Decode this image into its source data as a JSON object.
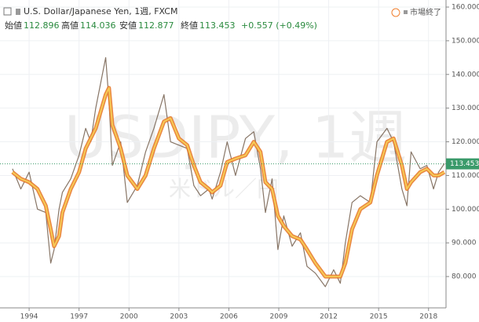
{
  "header": {
    "symbol": "U.S. Dollar/Japanese Yen, 1週, FXCM",
    "open_label": "始値",
    "open": 112.896,
    "high_label": "高値",
    "high": 114.036,
    "low_label": "安値",
    "low": 112.877,
    "close_label": "終値",
    "change": "+0.557 (+0.49%)",
    "status": "市場終了"
  },
  "watermark": {
    "main": "USDJPY, 1週",
    "sub": "米ドル／円"
  },
  "chart_data": {
    "type": "line",
    "last_price": 113.453,
    "x": [
      1993.0,
      1993.5,
      1994.0,
      1994.5,
      1995.0,
      1995.3,
      1995.5,
      1995.8,
      1996.0,
      1996.5,
      1997.0,
      1997.4,
      1997.7,
      1998.0,
      1998.6,
      1998.8,
      1999.0,
      1999.5,
      1999.9,
      2000.5,
      2001.0,
      2001.5,
      2002.1,
      2002.5,
      2003.0,
      2003.5,
      2003.9,
      2004.3,
      2004.8,
      2005.0,
      2005.5,
      2005.9,
      2006.4,
      2007.0,
      2007.5,
      2007.9,
      2008.2,
      2008.6,
      2008.95,
      2009.3,
      2009.8,
      2010.3,
      2010.7,
      2011.2,
      2011.8,
      2012.3,
      2012.7,
      2013.0,
      2013.4,
      2013.9,
      2014.5,
      2014.9,
      2015.5,
      2015.9,
      2016.4,
      2016.7,
      2016.95,
      2017.5,
      2017.9,
      2018.3,
      2018.6,
      2018.95
    ],
    "series": [
      {
        "color": "#7a6655",
        "width": 1.2,
        "values": [
          112,
          106,
          111,
          100,
          99,
          84,
          88,
          100,
          105,
          109,
          116,
          124,
          120,
          130,
          145,
          132,
          113,
          120,
          102,
          107,
          117,
          124,
          134,
          120,
          119,
          118,
          107,
          104,
          106,
          103,
          111,
          120,
          110,
          121,
          123,
          112,
          99,
          109,
          88,
          98,
          89,
          93,
          83,
          81,
          77,
          82,
          78,
          90,
          102,
          104,
          102,
          120,
          124,
          120,
          106,
          101,
          117,
          112,
          113,
          106,
          111,
          113.5
        ]
      },
      {
        "color": "#e87a2e",
        "width": 5,
        "values": [
          111,
          109,
          108,
          106,
          101,
          94,
          89,
          92,
          99,
          106,
          111,
          118,
          121,
          124,
          134,
          136,
          125,
          118,
          110,
          106,
          110,
          118,
          126,
          127,
          121,
          119,
          113,
          108,
          106,
          105,
          107,
          114,
          115,
          116,
          120,
          117,
          108,
          106,
          98,
          95,
          92,
          91,
          88,
          84,
          80,
          80,
          80,
          84,
          94,
          100,
          102,
          110,
          120,
          121,
          113,
          106,
          108,
          111,
          112,
          110,
          110,
          111
        ]
      },
      {
        "color": "#f7d257",
        "width": 2,
        "values": [
          111,
          109,
          108,
          106,
          101,
          94,
          89,
          92,
          99,
          106,
          111,
          118,
          121,
          124,
          134,
          136,
          125,
          118,
          110,
          106,
          110,
          118,
          126,
          127,
          121,
          119,
          113,
          108,
          106,
          105,
          107,
          114,
          115,
          116,
          120,
          117,
          108,
          106,
          98,
          95,
          92,
          91,
          88,
          84,
          80,
          80,
          80,
          84,
          94,
          100,
          102,
          110,
          120,
          121,
          113,
          106,
          108,
          111,
          112,
          110,
          110,
          111
        ]
      }
    ],
    "xlim": [
      1992.25,
      2019.05
    ],
    "xticks": [
      1994,
      1997,
      2000,
      2003,
      2006,
      2009,
      2012,
      2015,
      2018
    ],
    "ylim": [
      70.7,
      162.1
    ],
    "yticks": [
      {
        "value": 80,
        "label": "80.000"
      },
      {
        "value": 90,
        "label": "90.000"
      },
      {
        "value": 100,
        "label": "100.000"
      },
      {
        "value": 110,
        "label": "110.000"
      },
      {
        "value": 120,
        "label": "120.000"
      },
      {
        "value": 130,
        "label": "130.000"
      },
      {
        "value": 140,
        "label": "140.000"
      },
      {
        "value": 150,
        "label": "150.000"
      },
      {
        "value": 160,
        "label": "160.000"
      }
    ],
    "grid": true
  }
}
